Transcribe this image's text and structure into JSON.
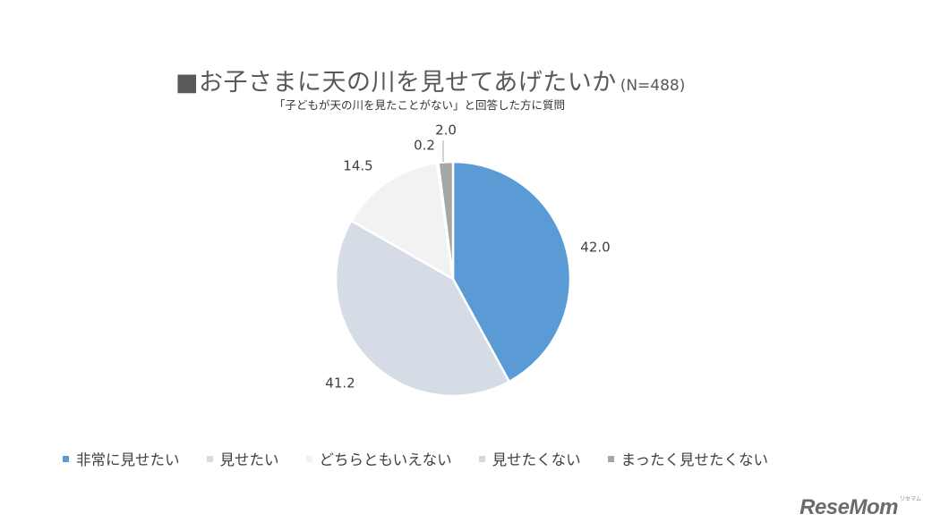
{
  "chart_data": {
    "type": "pie",
    "title": "■お子さまに天の川を見せてあげたいか",
    "title_n": "(N=488)",
    "subtitle": "「子どもが天の川を見たことがない」と回答した方に質問",
    "categories": [
      "非常に見せたい",
      "見せたい",
      "どちらともいえない",
      "見せたくない",
      "まったく見せたくない"
    ],
    "values": [
      42.0,
      41.2,
      14.5,
      0.2,
      2.0
    ],
    "labels": [
      "42.0",
      "41.2",
      "14.5",
      "0.2",
      "2.0"
    ],
    "colors": [
      "#5b9bd5",
      "#d6dce5",
      "#f2f2f2",
      "#d9d9d9",
      "#a6a6a6"
    ],
    "legend_position": "bottom"
  },
  "logo": {
    "text": "ReseMom",
    "small_text": "リセマム"
  }
}
